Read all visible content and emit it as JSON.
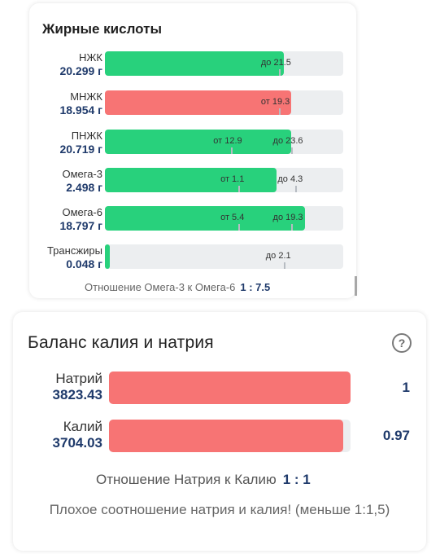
{
  "fatty_acids": {
    "title": "Жирные кислоты",
    "rows": [
      {
        "label": "НЖК",
        "value": "20.299 г",
        "color": "#28d17c",
        "fill": 0.75,
        "notes": [
          {
            "text": "до 21.5",
            "pos": 0.73
          }
        ]
      },
      {
        "label": "МНЖК",
        "value": "18.954 г",
        "color": "#f77474",
        "fill": 0.78,
        "notes": [
          {
            "text": "от 19.3",
            "pos": 0.73
          }
        ]
      },
      {
        "label": "ПНЖК",
        "value": "20.719 г",
        "color": "#28d17c",
        "fill": 0.78,
        "notes": [
          {
            "text": "от 12.9",
            "pos": 0.53
          },
          {
            "text": "до 23.6",
            "pos": 0.78
          }
        ]
      },
      {
        "label": "Омега-3",
        "value": "2.498 г",
        "color": "#28d17c",
        "fill": 0.72,
        "notes": [
          {
            "text": "от 1.1",
            "pos": 0.56
          },
          {
            "text": "до 4.3",
            "pos": 0.8
          }
        ]
      },
      {
        "label": "Омега-6",
        "value": "18.797 г",
        "color": "#28d17c",
        "fill": 0.84,
        "notes": [
          {
            "text": "от 5.4",
            "pos": 0.56
          },
          {
            "text": "до 19.3",
            "pos": 0.78
          }
        ]
      },
      {
        "label": "Трансжиры",
        "value": "0.048 г",
        "color": "#28d17c",
        "fill": 0.02,
        "notes": [
          {
            "text": "до 2.1",
            "pos": 0.75
          }
        ]
      }
    ],
    "ratio_label": "Отношение Омега-3 к Омега-6",
    "ratio_value": "1 : 7.5"
  },
  "sodium_potassium": {
    "title": "Баланс калия и натрия",
    "help_icon": "question-circle-icon",
    "rows": [
      {
        "label": "Натрий",
        "value": "3823.43",
        "fill": 1.0,
        "ratio": "1"
      },
      {
        "label": "Калий",
        "value": "3704.03",
        "fill": 0.97,
        "ratio": "0.97"
      }
    ],
    "ratio_label": "Отношение Натрия к Калию",
    "ratio_value": "1 : 1",
    "warning": "Плохое соотношение натрия и калия! (меньше 1:1,5)"
  }
}
